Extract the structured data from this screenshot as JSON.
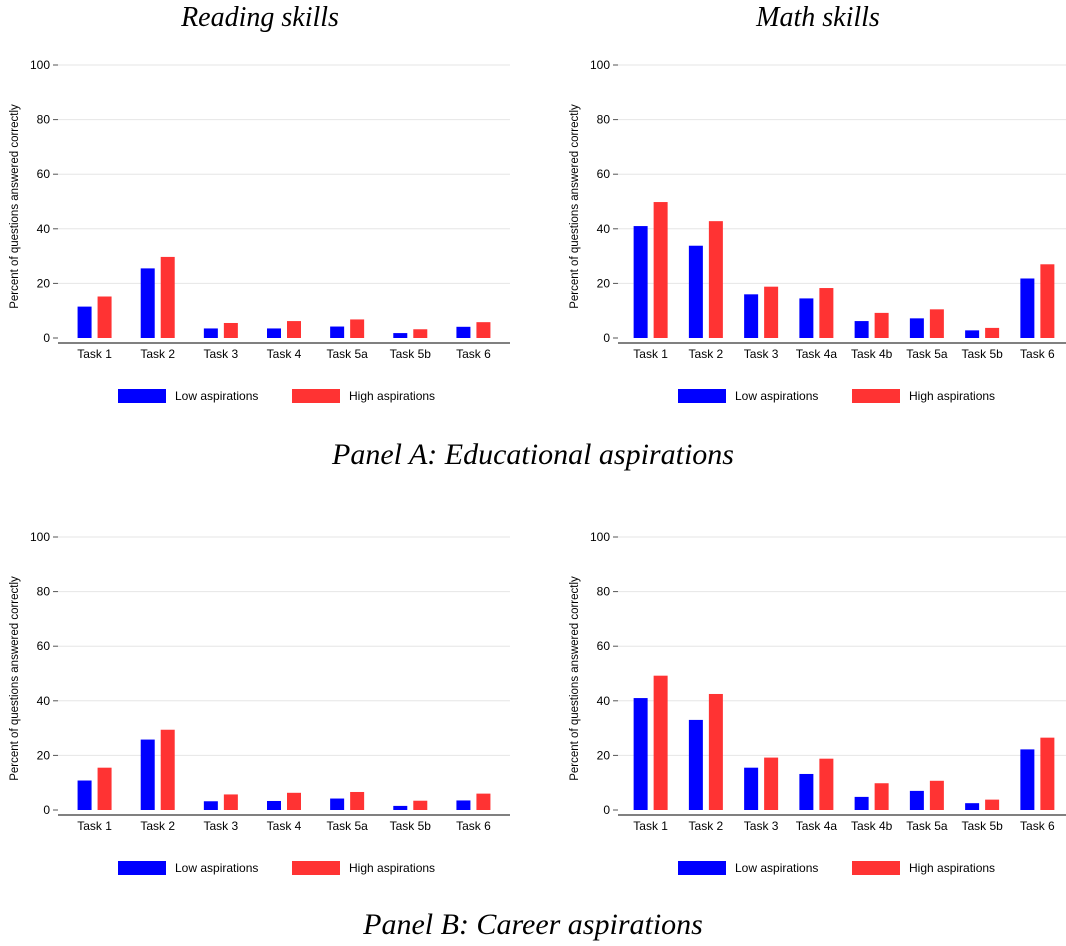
{
  "column_titles": [
    "Reading skills",
    "Math skills"
  ],
  "panels": [
    {
      "title": "Panel A: Educational aspirations"
    },
    {
      "title": "Panel B: Career aspirations"
    }
  ],
  "colors": {
    "low": "#0000ff",
    "high": "#ff3333",
    "grid": "#e6e6e6",
    "axis": "#000000"
  },
  "chart_data": [
    {
      "type": "bar",
      "panel": "Panel A: Educational aspirations",
      "column": "Reading skills",
      "categories": [
        "Task 1",
        "Task 2",
        "Task 3",
        "Task 4",
        "Task 5a",
        "Task 5b",
        "Task 6"
      ],
      "series": [
        {
          "name": "Low aspirations",
          "values": [
            11.5,
            25.5,
            3.5,
            3.5,
            4.2,
            1.8,
            4.1
          ]
        },
        {
          "name": "High aspirations",
          "values": [
            15.2,
            29.7,
            5.5,
            6.2,
            6.8,
            3.2,
            5.8
          ]
        }
      ],
      "ylabel": "Percent of questions answered correctly",
      "ylim": [
        0,
        100
      ],
      "yticks": [
        0,
        20,
        40,
        60,
        80,
        100
      ],
      "grid": true,
      "legend": "bottom"
    },
    {
      "type": "bar",
      "panel": "Panel A: Educational aspirations",
      "column": "Math skills",
      "categories": [
        "Task 1",
        "Task 2",
        "Task 3",
        "Task 4a",
        "Task 4b",
        "Task 5a",
        "Task 5b",
        "Task 6"
      ],
      "series": [
        {
          "name": "Low aspirations",
          "values": [
            41.0,
            33.8,
            16.0,
            14.5,
            6.2,
            7.2,
            2.8,
            21.8
          ]
        },
        {
          "name": "High aspirations",
          "values": [
            49.8,
            42.8,
            18.8,
            18.3,
            9.2,
            10.5,
            3.7,
            27.0
          ]
        }
      ],
      "ylabel": "Percent of questions answered correctly",
      "ylim": [
        0,
        100
      ],
      "yticks": [
        0,
        20,
        40,
        60,
        80,
        100
      ],
      "grid": true,
      "legend": "bottom"
    },
    {
      "type": "bar",
      "panel": "Panel B: Career aspirations",
      "column": "Reading skills",
      "categories": [
        "Task 1",
        "Task 2",
        "Task 3",
        "Task 4",
        "Task 5a",
        "Task 5b",
        "Task 6"
      ],
      "series": [
        {
          "name": "Low aspirations",
          "values": [
            10.8,
            25.8,
            3.2,
            3.3,
            4.2,
            1.5,
            3.5
          ]
        },
        {
          "name": "High aspirations",
          "values": [
            15.5,
            29.4,
            5.7,
            6.3,
            6.6,
            3.4,
            6.0
          ]
        }
      ],
      "ylabel": "Percent of questions answered correctly",
      "ylim": [
        0,
        100
      ],
      "yticks": [
        0,
        20,
        40,
        60,
        80,
        100
      ],
      "grid": true,
      "legend": "bottom"
    },
    {
      "type": "bar",
      "panel": "Panel B: Career aspirations",
      "column": "Math skills",
      "categories": [
        "Task 1",
        "Task 2",
        "Task 3",
        "Task 4a",
        "Task 4b",
        "Task 5a",
        "Task 5b",
        "Task 6"
      ],
      "series": [
        {
          "name": "Low aspirations",
          "values": [
            41.0,
            33.0,
            15.5,
            13.2,
            4.8,
            7.0,
            2.5,
            22.2
          ]
        },
        {
          "name": "High aspirations",
          "values": [
            49.2,
            42.5,
            19.2,
            18.8,
            9.8,
            10.7,
            3.8,
            26.5
          ]
        }
      ],
      "ylabel": "Percent of questions answered correctly",
      "ylim": [
        0,
        100
      ],
      "yticks": [
        0,
        20,
        40,
        60,
        80,
        100
      ],
      "grid": true,
      "legend": "bottom"
    }
  ]
}
